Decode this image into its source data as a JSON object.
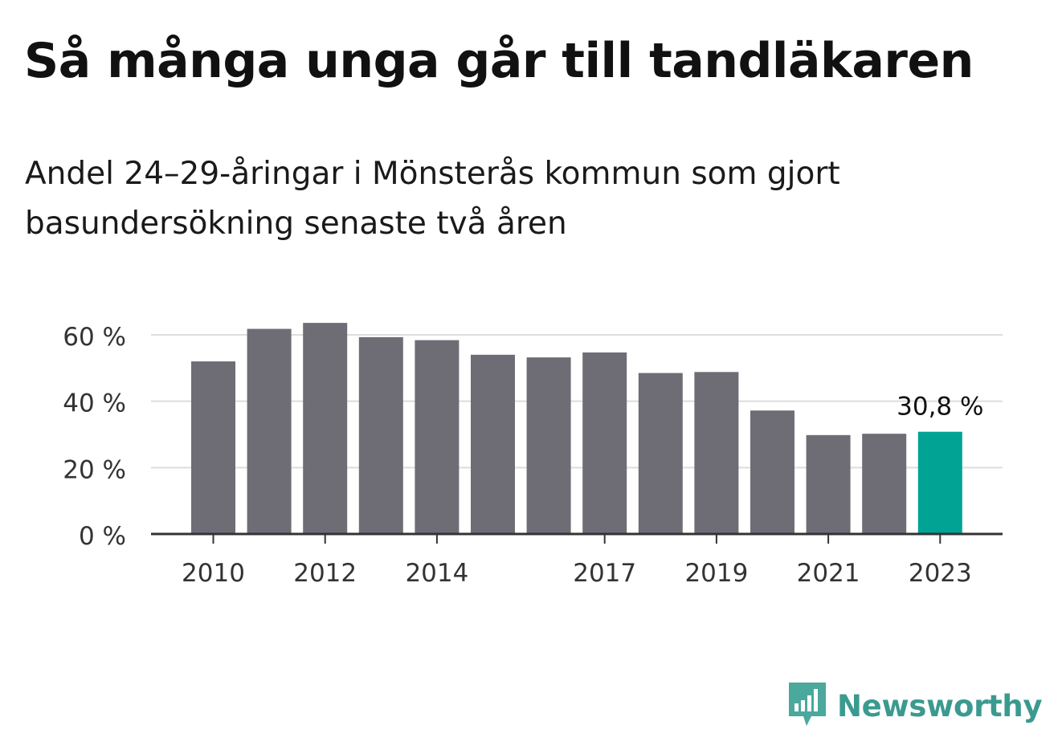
{
  "title": "Så många unga går till tandläkaren",
  "subtitle": "Andel 24–29-åringar i Mönsterås kommun som gjort basundersökning senaste två åren",
  "brand": {
    "name": "Newsworthy",
    "icon": "newsworthy-logo-icon",
    "color": "#3b9a8f"
  },
  "chart_data": {
    "type": "bar",
    "title": "Så många unga går till tandläkaren",
    "subtitle": "Andel 24–29-åringar i Mönsterås kommun som gjort basundersökning senaste två åren",
    "categories": [
      "2010",
      "2011",
      "2012",
      "2013",
      "2014",
      "2015",
      "2016",
      "2017",
      "2018",
      "2019",
      "2020",
      "2021",
      "2022",
      "2023"
    ],
    "values": [
      52.0,
      61.8,
      63.6,
      59.3,
      58.4,
      54.0,
      53.2,
      54.7,
      48.5,
      48.8,
      37.2,
      29.8,
      30.2,
      30.8
    ],
    "x_tick_labels": [
      "2010",
      "2012",
      "2014",
      "2017",
      "2019",
      "2021",
      "2023"
    ],
    "y_ticks": [
      {
        "value": 0,
        "label": "0 %"
      },
      {
        "value": 20,
        "label": "20 %"
      },
      {
        "value": 40,
        "label": "40 %"
      },
      {
        "value": 60,
        "label": "60 %"
      }
    ],
    "ylim": [
      0,
      60
    ],
    "xlabel": "",
    "ylabel": "",
    "grid": true,
    "annotation": {
      "category": "2023",
      "label": "30,8 %"
    },
    "colors": {
      "bar": "#6e6d75",
      "highlight": "#00a394",
      "grid": "#dddddd",
      "axis": "#333333"
    }
  }
}
